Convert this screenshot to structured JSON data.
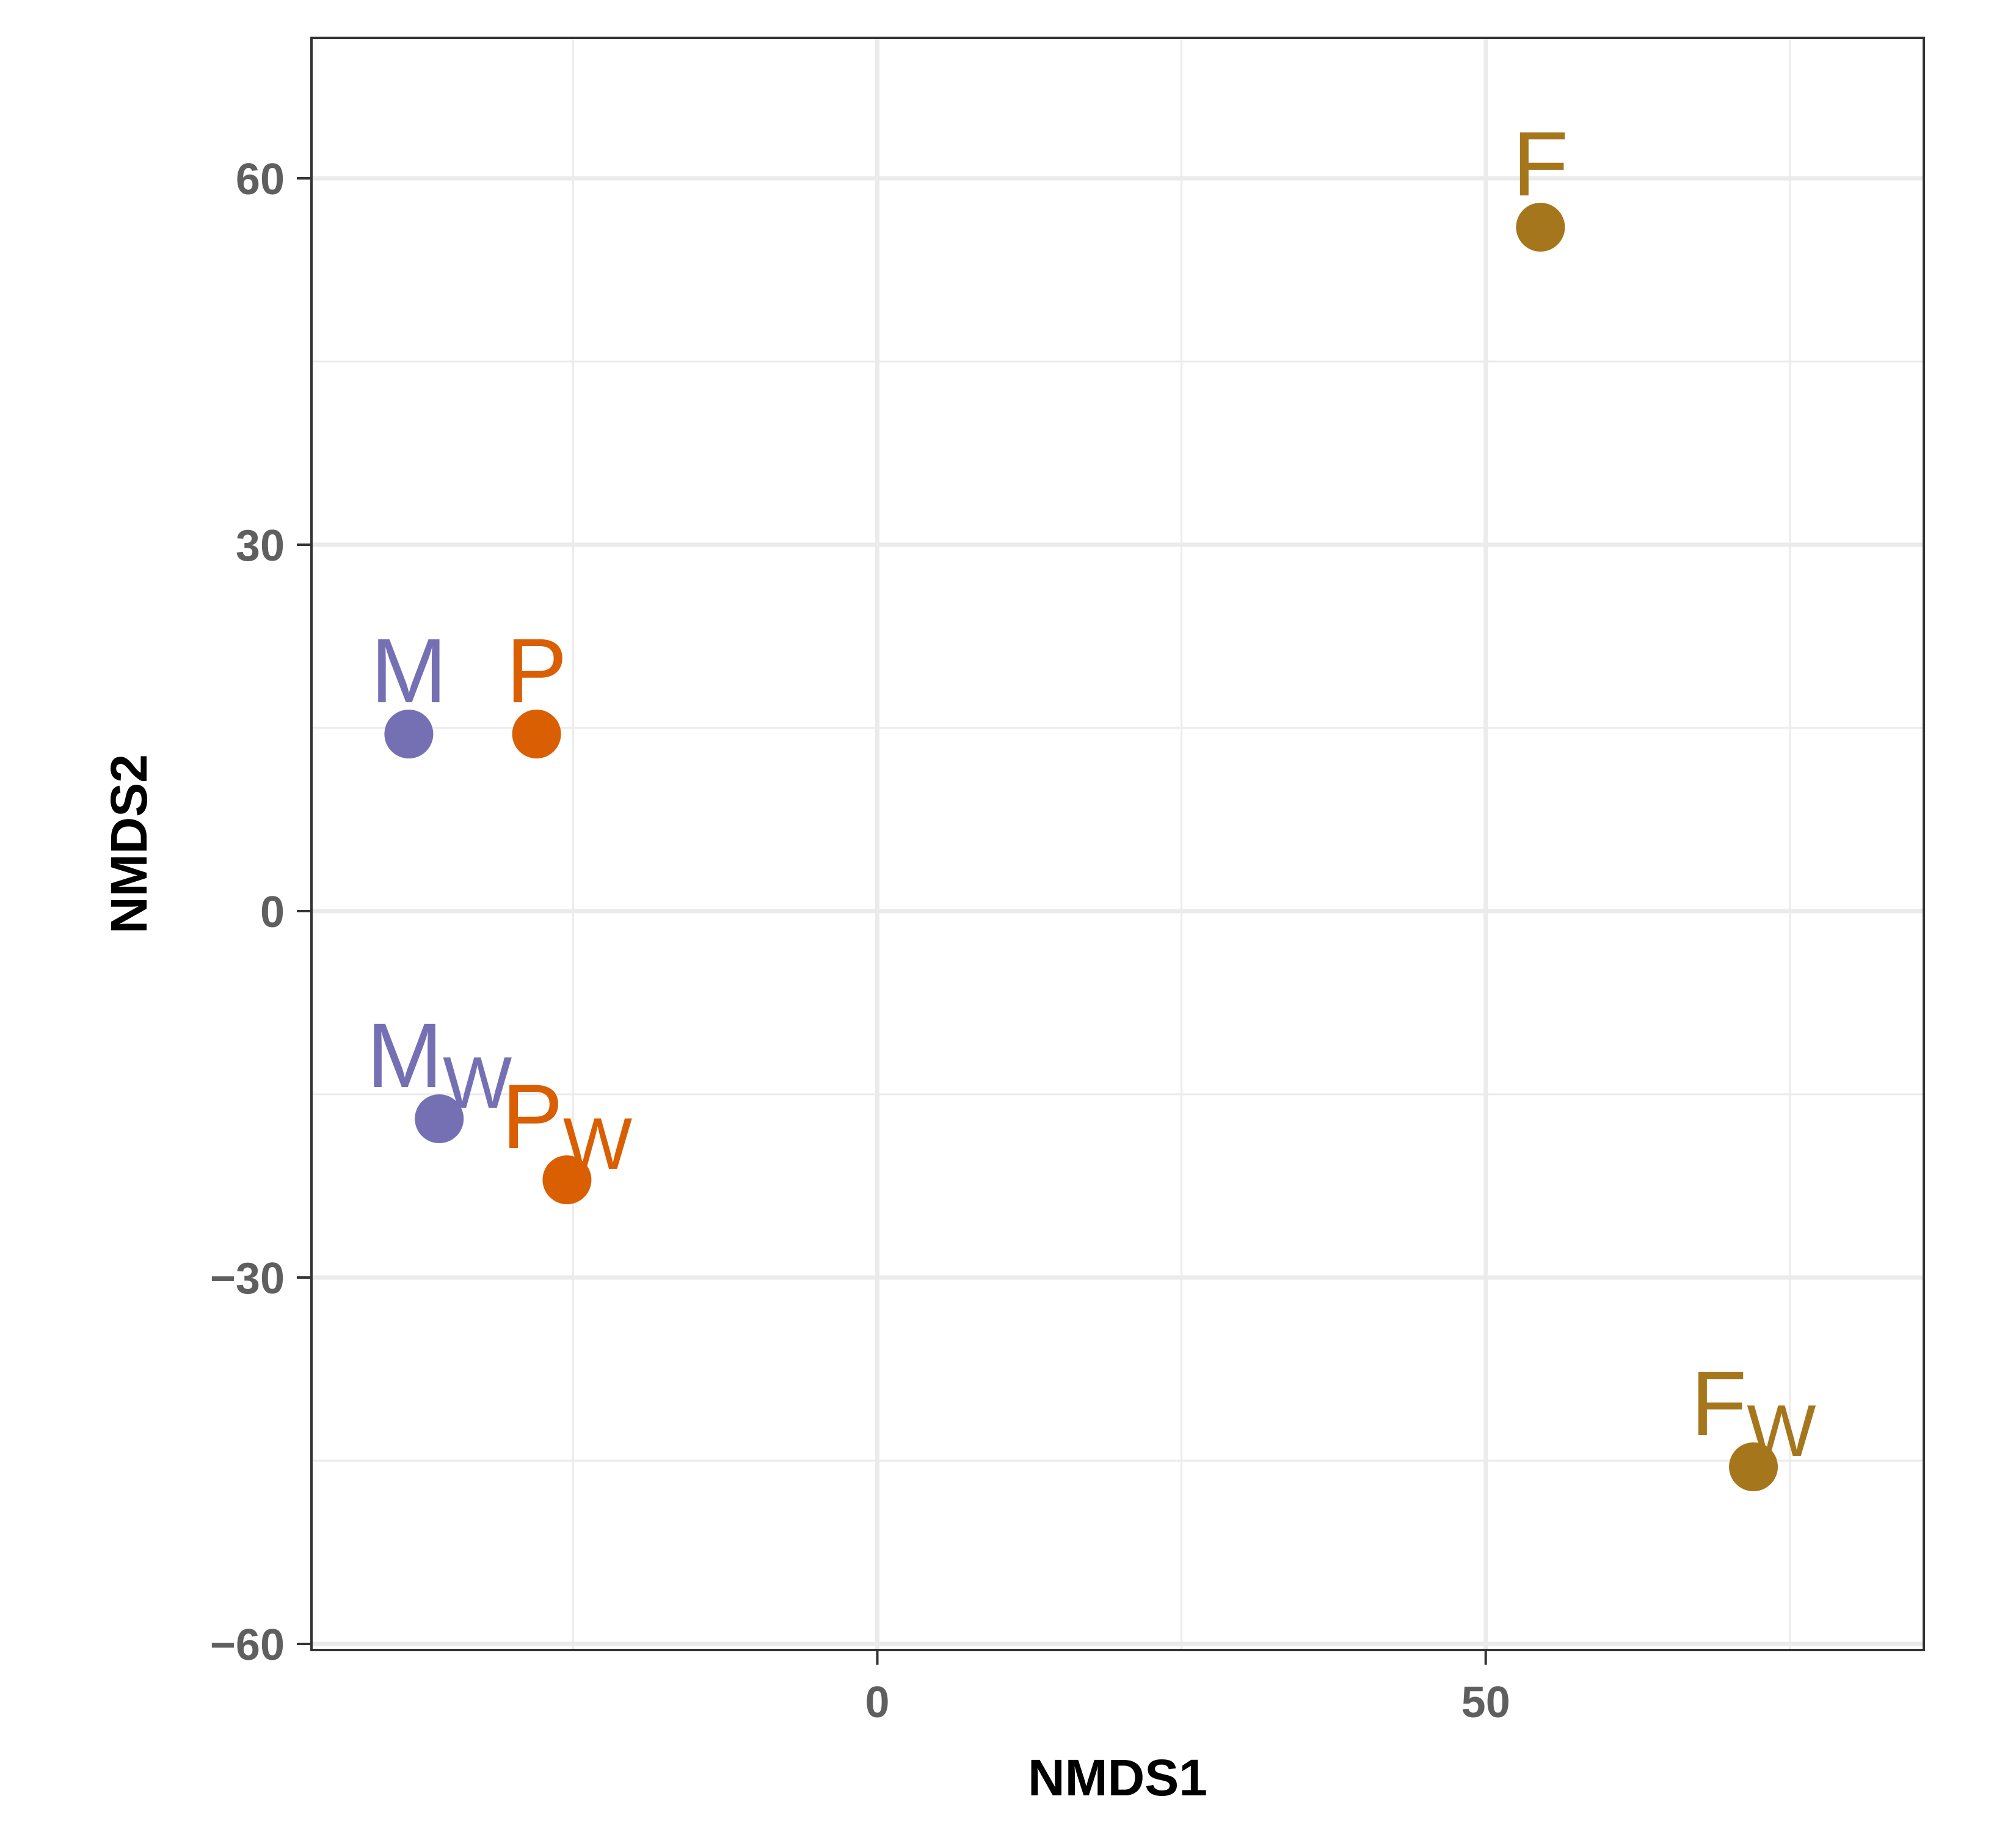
{
  "chart_data": {
    "type": "scatter",
    "xlabel": "NMDS1",
    "ylabel": "NMDS2",
    "xlim": [
      -46.5,
      86
    ],
    "ylim": [
      -60.5,
      71.5
    ],
    "x_ticks": [
      0,
      50
    ],
    "x_tick_labels": [
      "0",
      "50"
    ],
    "x_minor_ticks": [
      -25,
      25,
      75
    ],
    "y_ticks": [
      -60,
      -30,
      0,
      30,
      60
    ],
    "y_tick_labels": [
      "−60",
      "−30",
      "0",
      "30",
      "60"
    ],
    "y_minor_ticks": [
      -45,
      -15,
      15,
      45
    ],
    "grid": true,
    "legend": "none",
    "points": [
      {
        "x": -38.5,
        "y": 14.5,
        "base": "M",
        "sub": "",
        "color": "#7570b3"
      },
      {
        "x": -28,
        "y": 14.5,
        "base": "P",
        "sub": "",
        "color": "#d95f02"
      },
      {
        "x": 54.5,
        "y": 56,
        "base": "F",
        "sub": "",
        "color": "#a6761d"
      },
      {
        "x": -36,
        "y": -17,
        "base": "M",
        "sub": "W",
        "color": "#7570b3"
      },
      {
        "x": -25.5,
        "y": -22,
        "base": "P",
        "sub": "W",
        "color": "#d95f02"
      },
      {
        "x": 72,
        "y": -45.5,
        "base": "F",
        "sub": "W",
        "color": "#a6761d"
      }
    ]
  }
}
